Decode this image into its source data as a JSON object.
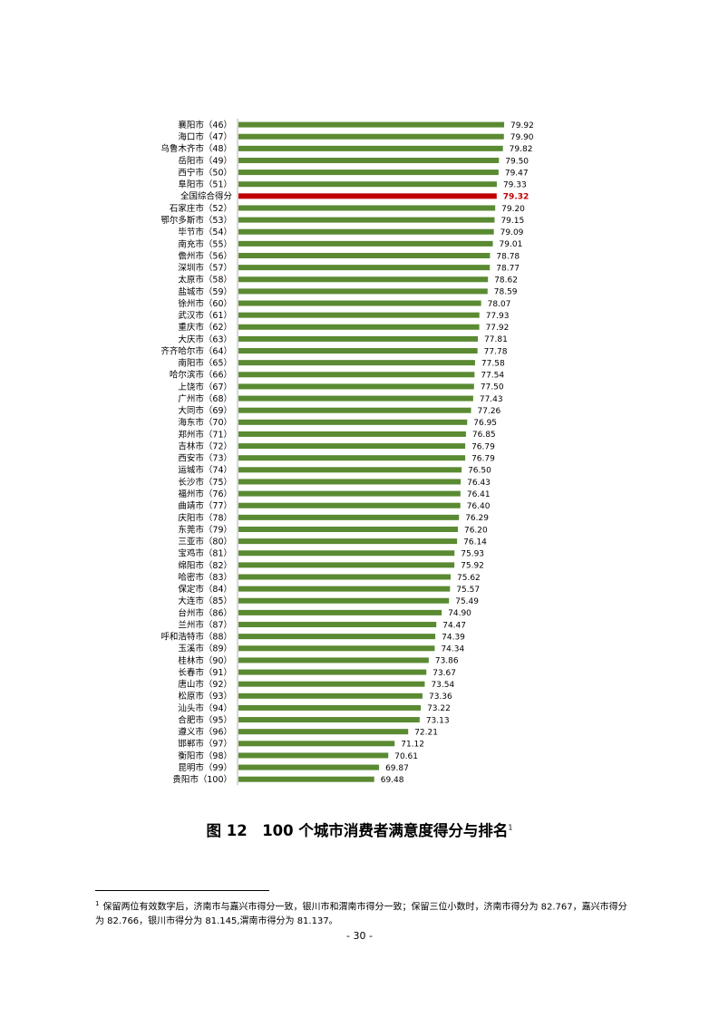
{
  "chart_data": {
    "type": "bar",
    "orientation": "horizontal",
    "categories": [
      "襄阳市（46）",
      "海口市（47）",
      "乌鲁木齐市（48）",
      "岳阳市（49）",
      "西宁市（50）",
      "阜阳市（51）",
      "全国综合得分",
      "石家庄市（52）",
      "鄂尔多斯市（53）",
      "毕节市（54）",
      "南充市（55）",
      "儋州市（56）",
      "深圳市（57）",
      "太原市（58）",
      "盐城市（59）",
      "徐州市（60）",
      "武汉市（61）",
      "重庆市（62）",
      "大庆市（63）",
      "齐齐哈尔市（64）",
      "南阳市（65）",
      "哈尔滨市（66）",
      "上饶市（67）",
      "广州市（68）",
      "大同市（69）",
      "海东市（70）",
      "郑州市（71）",
      "吉林市（72）",
      "西安市（73）",
      "运城市（74）",
      "长沙市（75）",
      "福州市（76）",
      "曲靖市（77）",
      "庆阳市（78）",
      "东莞市（79）",
      "三亚市（80）",
      "宝鸡市（81）",
      "绵阳市（82）",
      "哈密市（83）",
      "保定市（84）",
      "大连市（85）",
      "台州市（86）",
      "兰州市（87）",
      "呼和浩特市（88）",
      "玉溪市（89）",
      "桂林市（90）",
      "长春市（91）",
      "唐山市（92）",
      "松原市（93）",
      "汕头市（94）",
      "合肥市（95）",
      "遵义市（96）",
      "邯郸市（97）",
      "衡阳市（98）",
      "昆明市（99）",
      "贵阳市（100）"
    ],
    "values": [
      79.92,
      79.9,
      79.82,
      79.5,
      79.47,
      79.33,
      79.32,
      79.2,
      79.15,
      79.09,
      79.01,
      78.78,
      78.77,
      78.62,
      78.59,
      78.07,
      77.93,
      77.92,
      77.81,
      77.78,
      77.58,
      77.54,
      77.5,
      77.43,
      77.26,
      76.95,
      76.85,
      76.79,
      76.79,
      76.5,
      76.43,
      76.41,
      76.4,
      76.29,
      76.2,
      76.14,
      75.93,
      75.92,
      75.62,
      75.57,
      75.49,
      74.9,
      74.47,
      74.39,
      74.34,
      73.86,
      73.67,
      73.54,
      73.36,
      73.22,
      73.13,
      72.21,
      71.12,
      70.61,
      69.87,
      69.48
    ],
    "value_labels": [
      "79.92",
      "79.90",
      "79.82",
      "79.50",
      "79.47",
      "79.33",
      "79.32",
      "79.20",
      "79.15",
      "79.09",
      "79.01",
      "78.78",
      "78.77",
      "78.62",
      "78.59",
      "78.07",
      "77.93",
      "77.92",
      "77.81",
      "77.78",
      "77.58",
      "77.54",
      "77.50",
      "77.43",
      "77.26",
      "76.95",
      "76.85",
      "76.79",
      "76.79",
      "76.50",
      "76.43",
      "76.41",
      "76.40",
      "76.29",
      "76.20",
      "76.14",
      "75.93",
      "75.92",
      "75.62",
      "75.57",
      "75.49",
      "74.90",
      "74.47",
      "74.39",
      "74.34",
      "73.86",
      "73.67",
      "73.54",
      "73.36",
      "73.22",
      "73.13",
      "72.21",
      "71.12",
      "70.61",
      "69.87",
      "69.48"
    ],
    "highlight_index": 6,
    "colors": {
      "bar": "#5a8a32",
      "highlight": "#c00000",
      "axis": "#b0b0b0"
    },
    "xlim": [
      58.5,
      80.5
    ],
    "grid": false,
    "legend": "none"
  },
  "caption": {
    "main": "图 12　100 个城市消费者满意度得分与排名",
    "sup": "1"
  },
  "footnote": {
    "marker": "1",
    "text": "保留两位有效数字后，济南市与嘉兴市得分一致，银川市和渭南市得分一致；保留三位小数时，济南市得分为 82.767，嘉兴市得分为 82.766，银川市得分为 81.145,渭南市得分为 81.137。"
  },
  "page_number": "- 30 -"
}
